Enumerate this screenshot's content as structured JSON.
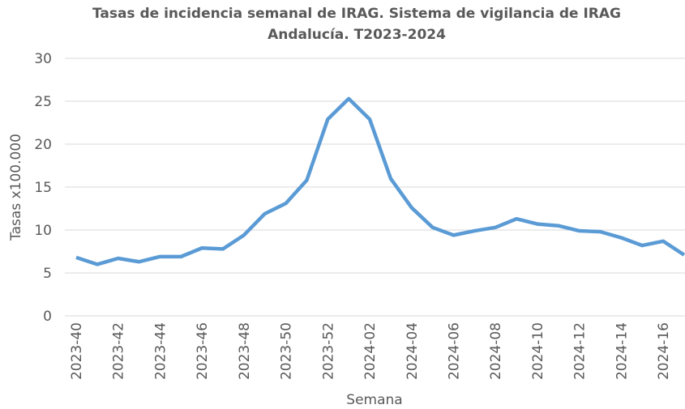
{
  "chart_data": {
    "type": "line",
    "title": [
      "Tasas de incidencia semanal de IRAG. Sistema de vigilancia de IRAG",
      "Andalucía. T2023-2024"
    ],
    "x_label": "Semana",
    "y_label": "Tasas x100.000",
    "categories": [
      "2023-40",
      null,
      "2023-42",
      null,
      "2023-44",
      null,
      "2023-46",
      null,
      "2023-48",
      null,
      "2023-50",
      null,
      "2023-52",
      null,
      "2024-02",
      null,
      "2024-04",
      null,
      "2024-06",
      null,
      "2024-08",
      null,
      "2024-10",
      null,
      "2024-12",
      null,
      "2024-14",
      null,
      "2024-16",
      null
    ],
    "series": [
      {
        "name": "Tasas x100.000",
        "color": "#5b9bd5",
        "values": [
          6.8,
          6.0,
          6.7,
          6.3,
          6.9,
          6.9,
          7.9,
          7.8,
          9.4,
          11.9,
          13.1,
          15.8,
          22.9,
          25.3,
          22.9,
          16.0,
          12.6,
          10.3,
          9.4,
          9.9,
          10.3,
          11.3,
          10.7,
          10.5,
          9.9,
          9.8,
          9.1,
          8.2,
          8.7,
          7.1
        ]
      }
    ],
    "ylim": [
      0,
      30
    ],
    "yticks": [
      0,
      5,
      10,
      15,
      20,
      25,
      30
    ],
    "grid": true
  }
}
